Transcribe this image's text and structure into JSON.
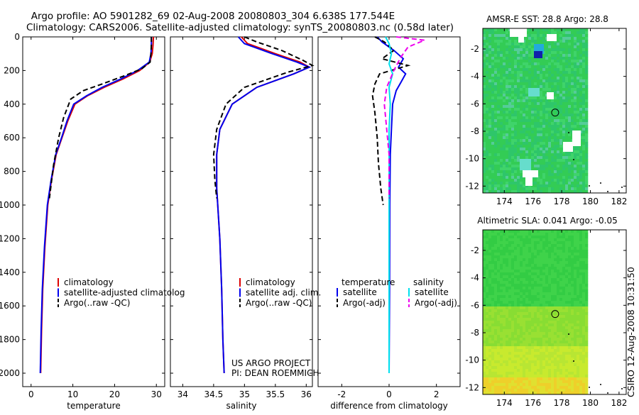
{
  "header": {
    "title_line1": "Argo profile: AO 5901282_69 02-Aug-2008 20080803_304 6.638S 177.544E",
    "title_line2": "Climatology: CARS2006. Satellite-adjusted climatology: synTS_20080803.nc (0.58d later)"
  },
  "side_label": "CSIRO 12-Aug-2008 10:31:50",
  "project_text": [
    "US ARGO PROJECT",
    "PI: DEAN ROEMMICH"
  ],
  "colors": {
    "climatology": "#dd0000",
    "satellite": "#0000ee",
    "argo": "#000000",
    "sal_satellite": "#00e0ee",
    "sal_argo": "#ee00ee"
  },
  "chart_data": [
    {
      "type": "line",
      "xlabel": "temperature",
      "xlim": [
        -2,
        32
      ],
      "xticks": [
        0,
        10,
        20,
        30
      ],
      "ylim": [
        2080,
        0
      ],
      "yticks": [
        0,
        200,
        400,
        600,
        800,
        1000,
        1200,
        1400,
        1600,
        1800,
        2000
      ],
      "legend_position": "lower-center",
      "legend": [
        "climatology",
        "satellite-adjusted climatolog",
        "Argo(..raw -QC)"
      ],
      "series": [
        {
          "name": "climatology",
          "color_key": "climatology",
          "style": "solid",
          "x": [
            29.3,
            29.2,
            29.0,
            28.4,
            26.0,
            22.0,
            17.5,
            13.5,
            10.5,
            8.8,
            7.4,
            6.0,
            4.9,
            4.0,
            3.3,
            2.8,
            2.5,
            2.3
          ],
          "y": [
            0,
            50,
            100,
            150,
            200,
            250,
            300,
            350,
            400,
            500,
            600,
            700,
            850,
            1000,
            1250,
            1500,
            1750,
            2000
          ]
        },
        {
          "name": "satellite-adjusted climatolog",
          "color_key": "satellite",
          "style": "solid",
          "x": [
            28.8,
            28.8,
            28.7,
            28.3,
            25.5,
            21.5,
            17.0,
            13.3,
            10.2,
            8.6,
            7.3,
            5.9,
            4.8,
            3.9,
            3.2,
            2.7,
            2.4,
            2.2
          ],
          "y": [
            0,
            50,
            100,
            150,
            200,
            250,
            300,
            350,
            400,
            500,
            600,
            700,
            850,
            1000,
            1250,
            1500,
            1750,
            2000
          ]
        },
        {
          "name": "Argo(..raw -QC)",
          "color_key": "argo",
          "style": "dashed",
          "x": [
            28.8,
            28.8,
            28.7,
            28.5,
            26.5,
            22.5,
            17.0,
            12.5,
            9.5,
            7.8,
            6.6,
            5.4,
            4.4
          ],
          "y": [
            0,
            40,
            100,
            150,
            190,
            230,
            280,
            320,
            370,
            480,
            600,
            760,
            960
          ]
        }
      ]
    },
    {
      "type": "line",
      "xlabel": "salinity",
      "xlim": [
        33.8,
        36.1
      ],
      "xticks": [
        34,
        34.5,
        35,
        35.5,
        36
      ],
      "ylim": [
        2080,
        0
      ],
      "legend_position": "lower-center",
      "legend": [
        "climatology",
        "satellite adj. clim.",
        "Argo(..raw -QC)"
      ],
      "series": [
        {
          "name": "climatology",
          "color_key": "climatology",
          "style": "solid",
          "x": [
            34.95,
            35.05,
            35.5,
            35.9,
            36.05,
            35.8,
            35.2,
            34.8,
            34.6,
            34.55,
            34.55,
            34.6,
            34.63,
            34.65,
            34.67
          ],
          "y": [
            0,
            40,
            100,
            150,
            180,
            220,
            300,
            400,
            550,
            700,
            900,
            1200,
            1500,
            1800,
            2000
          ]
        },
        {
          "name": "satellite adj. clim.",
          "color_key": "satellite",
          "style": "solid",
          "x": [
            34.9,
            35.0,
            35.45,
            35.85,
            36.05,
            35.8,
            35.2,
            34.8,
            34.6,
            34.55,
            34.55,
            34.6,
            34.63,
            34.65,
            34.67
          ],
          "y": [
            0,
            40,
            100,
            150,
            180,
            220,
            300,
            400,
            550,
            700,
            900,
            1200,
            1500,
            1800,
            2000
          ]
        },
        {
          "name": "Argo(..raw -QC)",
          "color_key": "argo",
          "style": "dashed",
          "x": [
            35.0,
            35.2,
            35.6,
            35.95,
            36.1,
            35.7,
            35.0,
            34.7,
            34.55,
            34.5,
            34.52,
            34.55
          ],
          "y": [
            0,
            30,
            80,
            140,
            170,
            210,
            300,
            400,
            550,
            700,
            850,
            960
          ]
        }
      ]
    },
    {
      "type": "line",
      "xlabel": "difference from climatology",
      "xlim": [
        -3,
        3
      ],
      "xticks": [
        -2,
        0,
        2
      ],
      "ylim": [
        2080,
        0
      ],
      "legend_position": "lower-center",
      "legend_groups": [
        {
          "title": "temperature",
          "items": [
            "satellite",
            "Argo(-adj)"
          ]
        },
        {
          "title": "salinity",
          "items": [
            "satellite",
            "Argo(-adj)"
          ]
        }
      ],
      "series": [
        {
          "name": "satellite",
          "group": "temperature",
          "color_key": "satellite",
          "style": "solid",
          "x": [
            -0.5,
            -0.3,
            0.2,
            0.6,
            0.4,
            0.7,
            0.5,
            0.3,
            0.15,
            0.1,
            0.05,
            0.03,
            0.02,
            0.0
          ],
          "y": [
            0,
            30,
            80,
            130,
            180,
            220,
            270,
            320,
            400,
            550,
            700,
            1000,
            1500,
            2000
          ]
        },
        {
          "name": "Argo(-adj)",
          "group": "temperature",
          "color_key": "argo",
          "style": "dashed",
          "x": [
            -0.6,
            -0.2,
            0.2,
            -0.3,
            0.8,
            -0.4,
            -0.6,
            -0.7,
            -0.6,
            -0.5,
            -0.45,
            -0.35,
            -0.25
          ],
          "y": [
            0,
            30,
            80,
            130,
            170,
            220,
            280,
            350,
            450,
            600,
            750,
            900,
            1000
          ]
        },
        {
          "name": "satellite",
          "group": "salinity",
          "color_key": "sal_satellite",
          "style": "solid",
          "x": [
            -0.15,
            0.0,
            0.1,
            0.0,
            0.15,
            0.0,
            0.05,
            0.0,
            0.0,
            0.0,
            0.0
          ],
          "y": [
            0,
            40,
            100,
            160,
            220,
            300,
            400,
            550,
            800,
            1400,
            2000
          ]
        },
        {
          "name": "Argo(-adj)",
          "group": "salinity",
          "color_key": "sal_argo",
          "style": "dashed",
          "x": [
            0.3,
            1.5,
            0.8,
            0.5,
            0.2,
            -0.1,
            -0.2,
            -0.1,
            0.0,
            0.0
          ],
          "y": [
            0,
            20,
            60,
            120,
            200,
            300,
            400,
            550,
            700,
            960
          ]
        }
      ]
    },
    {
      "type": "heatmap",
      "title": "AMSR-E SST: 28.8 Argo: 28.8",
      "xlim": [
        172.5,
        182.5
      ],
      "xticks": [
        174,
        176,
        178,
        180,
        182
      ],
      "ylim": [
        -12.5,
        -0.5
      ],
      "yticks": [
        -2,
        -4,
        -6,
        -8,
        -10,
        -12
      ],
      "marker": [
        177.544,
        -6.638
      ]
    },
    {
      "type": "heatmap",
      "title": "Altimetric SLA: 0.041 Argo: -0.05",
      "xlim": [
        172.5,
        182.5
      ],
      "xticks": [
        174,
        176,
        178,
        180,
        182
      ],
      "ylim": [
        -12.5,
        -0.5
      ],
      "yticks": [
        -2,
        -4,
        -6,
        -8,
        -10,
        -12
      ],
      "marker": [
        177.544,
        -6.638
      ]
    }
  ]
}
